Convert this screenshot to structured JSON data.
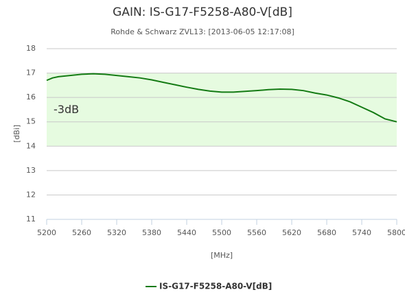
{
  "chart_data": {
    "type": "line",
    "title": "GAIN: IS-G17-F5258-A80-V[dB]",
    "subtitle": "Rohde & Schwarz ZVL13: [2013-06-05 12:17:08]",
    "x_label": "[MHz]",
    "y_label": "[dBi]",
    "x": [
      5200,
      5210,
      5220,
      5240,
      5260,
      5280,
      5300,
      5320,
      5340,
      5360,
      5380,
      5400,
      5420,
      5440,
      5460,
      5480,
      5500,
      5520,
      5540,
      5560,
      5580,
      5600,
      5620,
      5640,
      5660,
      5680,
      5700,
      5720,
      5740,
      5760,
      5780,
      5800
    ],
    "series": [
      {
        "name": "IS-G17-F5258-A80-V[dB]",
        "color": "#137a13",
        "values": [
          16.7,
          16.8,
          16.85,
          16.9,
          16.95,
          16.97,
          16.95,
          16.9,
          16.85,
          16.8,
          16.72,
          16.62,
          16.52,
          16.42,
          16.33,
          16.26,
          16.22,
          16.22,
          16.25,
          16.28,
          16.32,
          16.34,
          16.33,
          16.28,
          16.18,
          16.1,
          15.98,
          15.82,
          15.6,
          15.38,
          15.12,
          15.0
        ]
      }
    ],
    "plot_band": {
      "from": 14,
      "to": 17,
      "label": "-3dB",
      "color": "#e6fbe0"
    },
    "xlim": [
      5200,
      5800
    ],
    "xticks": [
      5200,
      5260,
      5320,
      5380,
      5440,
      5500,
      5560,
      5620,
      5680,
      5740,
      5800
    ],
    "ylim": [
      11,
      18
    ],
    "yticks": [
      11,
      12,
      13,
      14,
      15,
      16,
      17,
      18
    ],
    "grid": true,
    "legend": "bottom"
  }
}
